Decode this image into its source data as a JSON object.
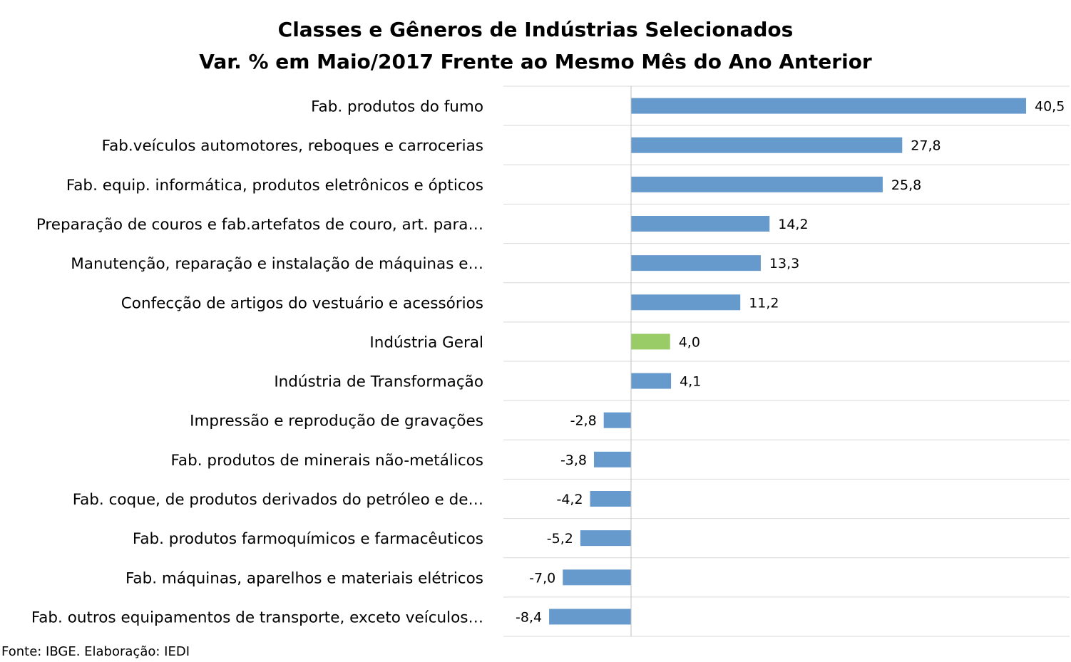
{
  "chart_data": {
    "type": "bar",
    "orientation": "horizontal",
    "title": "Classes e Gêneros de Indústrias Selecionados",
    "subtitle": "Var. % em Maio/2017 Frente ao Mesmo Mês do Ano Anterior",
    "categories": [
      "Fab. produtos do fumo",
      "Fab.veículos automotores, reboques e carrocerias",
      "Fab. equip. informática, produtos eletrônicos e ópticos",
      "Preparação de couros e fab.artefatos de couro, art. para…",
      "Manutenção, reparação e instalação de máquinas e…",
      "Confecção de artigos do vestuário e acessórios",
      "Indústria Geral",
      "Indústria de Transformação",
      "Impressão e reprodução de gravações",
      "Fab. produtos de minerais não-metálicos",
      "Fab. coque, de produtos derivados do petróleo e de…",
      "Fab. produtos farmoquímicos e farmacêuticos",
      "Fab. máquinas, aparelhos e materiais elétricos",
      "Fab. outros equipamentos de transporte, exceto veículos…"
    ],
    "values": [
      40.5,
      27.8,
      25.8,
      14.2,
      13.3,
      11.2,
      4.0,
      4.1,
      -2.8,
      -3.8,
      -4.2,
      -5.2,
      -7.0,
      -8.4
    ],
    "value_labels": [
      "40,5",
      "27,8",
      "25,8",
      "14,2",
      "13,3",
      "11,2",
      "4,0",
      "4,1",
      "-2,8",
      "-3,8",
      "-4,2",
      "-5,2",
      "-7,0",
      "-8,4"
    ],
    "highlight_index": 6,
    "xlim": [
      -13,
      45
    ],
    "gridlines": "horizontal-separators",
    "legend": "none",
    "colors": {
      "bar": "#6699cc",
      "highlight": "#99cc66",
      "grid": "#d9d9d9",
      "axis": "#bfbfbf"
    }
  },
  "source": "Fonte: IBGE. Elaboração: IEDI"
}
